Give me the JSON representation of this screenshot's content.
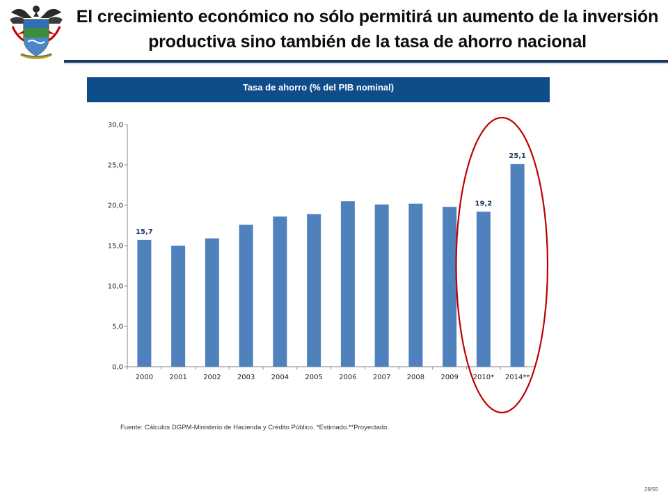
{
  "slide": {
    "title": "El crecimiento económico no sólo permitirá un aumento de la inversión productiva sino también de la tasa de ahorro nacional",
    "chart_heading": "Tasa de ahorro (% del PIB nominal)",
    "source": "Fuente: Cálculos DGPM-Ministerio de Hacienda y Crédito Público. *Estimado.**Proyectado.",
    "page_number": "28/55"
  },
  "colors": {
    "bar": "#4f81bd",
    "heading_band": "#0f4c8a",
    "highlight_ellipse": "#c00000",
    "data_label": "#1f3864"
  },
  "icons": {
    "logo": "colombia-coat-of-arms-icon"
  },
  "chart_data": {
    "type": "bar",
    "title": "Tasa de ahorro (% del PIB nominal)",
    "categories": [
      "2000",
      "2001",
      "2002",
      "2003",
      "2004",
      "2005",
      "2006",
      "2007",
      "2008",
      "2009",
      "2010*",
      "2014**"
    ],
    "values": [
      15.7,
      15.0,
      15.9,
      17.6,
      18.6,
      18.9,
      20.5,
      20.1,
      20.2,
      19.8,
      19.2,
      25.1
    ],
    "data_labels": {
      "0": "15,7",
      "10": "19,2",
      "11": "25,1"
    },
    "y_ticks": [
      "0,0",
      "5,0",
      "10,0",
      "15,0",
      "20,0",
      "25,0",
      "30,0"
    ],
    "ylim": [
      0,
      30
    ],
    "xlabel": "",
    "ylabel": "",
    "grid": false,
    "highlighted_categories": [
      "2010*",
      "2014**"
    ]
  }
}
